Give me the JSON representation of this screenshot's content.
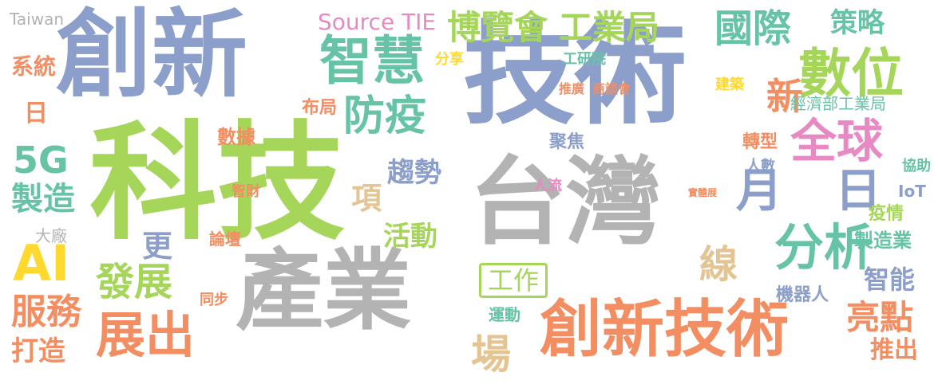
{
  "colors": {
    "blue": "#8c9fca",
    "green": "#a5d65a",
    "gray": "#b3b3b3",
    "orange": "#f38d62",
    "teal": "#66c3a6",
    "pink": "#e78ac3",
    "yellow": "#ffd92f",
    "tan": "#e5c494"
  },
  "words": [
    {
      "text": "技術",
      "color": "blue"
    },
    {
      "text": "科技",
      "color": "green"
    },
    {
      "text": "創新",
      "color": "blue"
    },
    {
      "text": "台灣",
      "color": "gray"
    },
    {
      "text": "產業",
      "color": "gray"
    },
    {
      "text": "創新技術",
      "color": "orange"
    },
    {
      "text": "智慧",
      "color": "teal"
    },
    {
      "text": "數位",
      "color": "green"
    },
    {
      "text": "國際",
      "color": "teal"
    },
    {
      "text": "博覽會",
      "color": "green"
    },
    {
      "text": "工業局",
      "color": "green"
    },
    {
      "text": "分析",
      "color": "teal"
    },
    {
      "text": "全球",
      "color": "pink"
    },
    {
      "text": "防疫",
      "color": "teal"
    },
    {
      "text": "展出",
      "color": "orange"
    },
    {
      "text": "AI",
      "color": "yellow"
    },
    {
      "text": "月",
      "color": "blue"
    },
    {
      "text": "日",
      "color": "blue"
    },
    {
      "text": "新",
      "color": "orange"
    },
    {
      "text": "發展",
      "color": "green"
    },
    {
      "text": "服務",
      "color": "orange"
    },
    {
      "text": "製造",
      "color": "teal"
    },
    {
      "text": "5G",
      "color": "teal"
    },
    {
      "text": "策略",
      "color": "teal"
    },
    {
      "text": "Source TIE",
      "color": "pink"
    },
    {
      "text": "趨勢",
      "color": "blue"
    },
    {
      "text": "活動",
      "color": "green"
    },
    {
      "text": "亮點",
      "color": "orange"
    },
    {
      "text": "場",
      "color": "tan"
    },
    {
      "text": "線",
      "color": "tan"
    },
    {
      "text": "打造",
      "color": "orange"
    },
    {
      "text": "智能",
      "color": "blue"
    },
    {
      "text": "推出",
      "color": "orange"
    },
    {
      "text": "工作",
      "color": "green"
    },
    {
      "text": "系統",
      "color": "orange"
    },
    {
      "text": "日",
      "color": "orange"
    },
    {
      "text": "Taiwan",
      "color": "gray"
    },
    {
      "text": "製造業",
      "color": "teal"
    },
    {
      "text": "項",
      "color": "tan"
    },
    {
      "text": "更",
      "color": "blue"
    },
    {
      "text": "大廠",
      "color": "gray"
    },
    {
      "text": "轉型",
      "color": "orange"
    },
    {
      "text": "聚焦",
      "color": "blue"
    },
    {
      "text": "經濟部工業局",
      "color": "teal"
    },
    {
      "text": "機器人",
      "color": "blue"
    },
    {
      "text": "疫情",
      "color": "green"
    },
    {
      "text": "布局",
      "color": "orange"
    },
    {
      "text": "數據",
      "color": "orange"
    },
    {
      "text": "分享",
      "color": "yellow"
    },
    {
      "text": "工研院",
      "color": "teal"
    },
    {
      "text": "推廣",
      "color": "orange"
    },
    {
      "text": "商談會",
      "color": "orange"
    },
    {
      "text": "建築",
      "color": "yellow"
    },
    {
      "text": "IoT",
      "color": "blue"
    },
    {
      "text": "協助",
      "color": "teal"
    },
    {
      "text": "論壇",
      "color": "orange"
    },
    {
      "text": "智財",
      "color": "orange"
    },
    {
      "text": "人流",
      "color": "pink"
    },
    {
      "text": "運動",
      "color": "teal"
    },
    {
      "text": "同步",
      "color": "orange"
    },
    {
      "text": "人數",
      "color": "blue"
    },
    {
      "text": "實體展",
      "color": "orange"
    }
  ]
}
